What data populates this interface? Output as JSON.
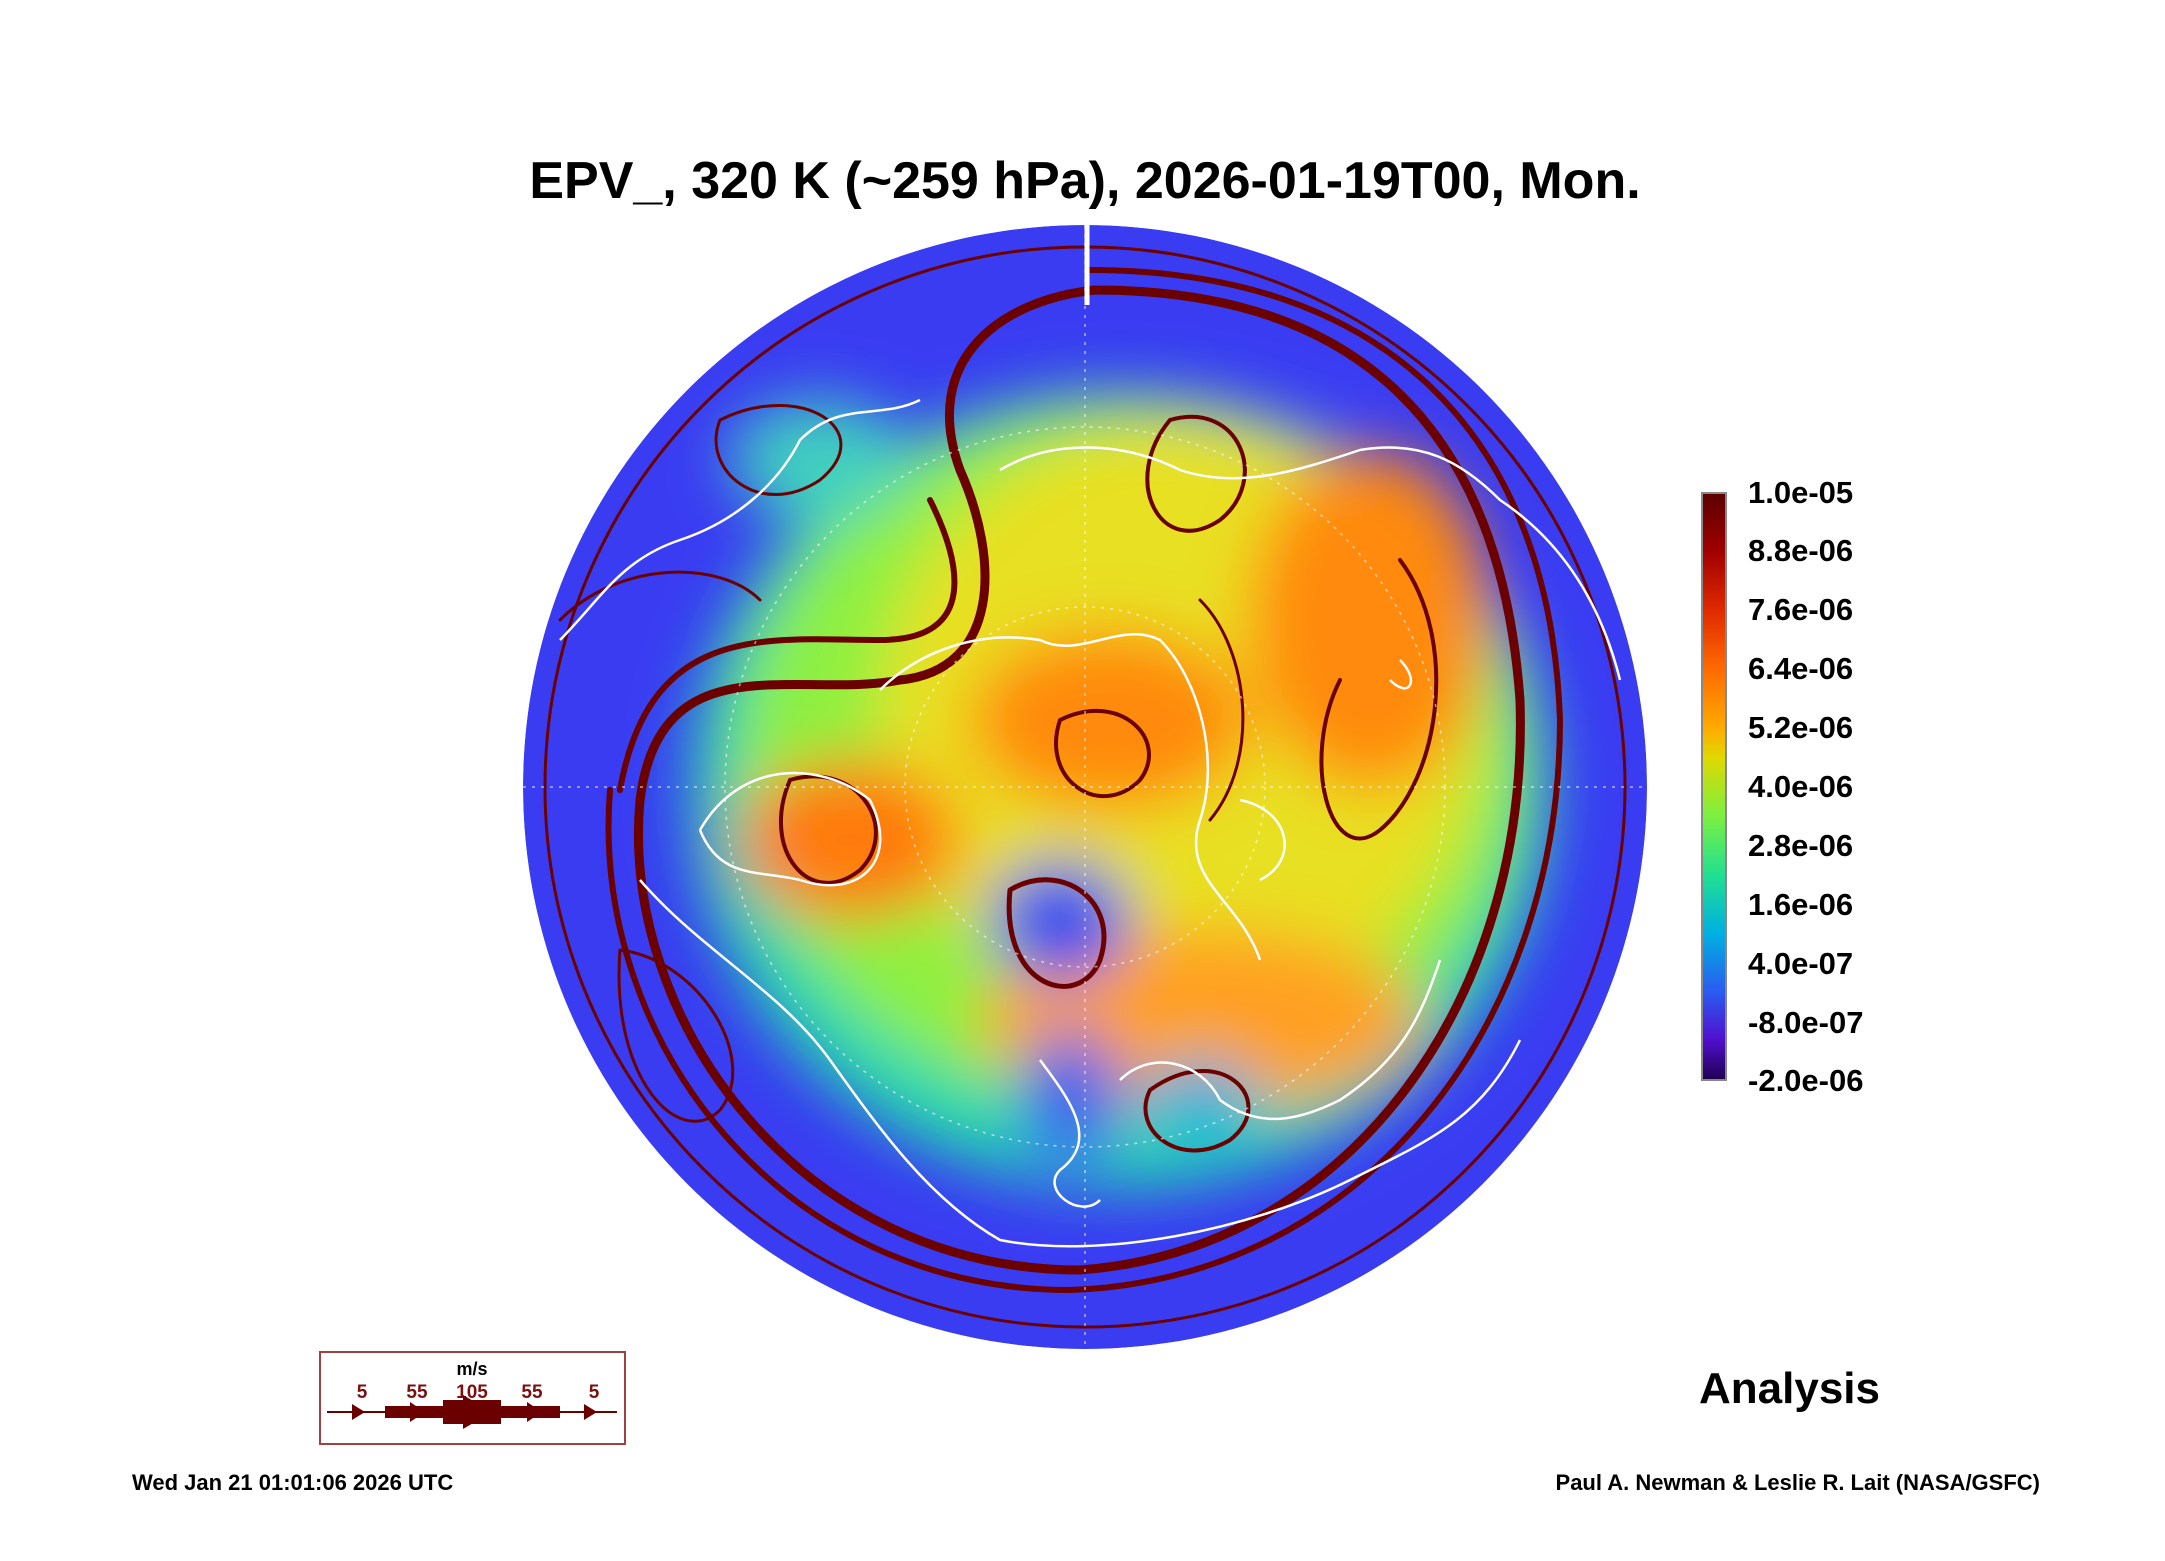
{
  "title": "EPV_, 320 K (~259 hPa), 2026-01-19T00, Mon.",
  "colorbar": {
    "labels": [
      "1.0e-05",
      "8.8e-06",
      "7.6e-06",
      "6.4e-06",
      "5.2e-06",
      "4.0e-06",
      "2.8e-06",
      "1.6e-06",
      "4.0e-07",
      "-8.0e-07",
      "-2.0e-06"
    ],
    "colors": [
      "#5a0000",
      "#a00000",
      "#e02a00",
      "#ff6a00",
      "#ffaa00",
      "#d8e000",
      "#6cf040",
      "#20e090",
      "#00b8d8",
      "#2a5cf0",
      "#5010d0",
      "#200050"
    ]
  },
  "wind_legend": {
    "unit": "m/s",
    "speeds": [
      "5",
      "55",
      "105",
      "55",
      "5"
    ],
    "color": "#6b0000"
  },
  "label_analysis": "Analysis",
  "footer": {
    "timestamp": "Wed Jan 21 01:01:06 2026 UTC",
    "credit": "Paul A. Newman & Leslie R. Lait (NASA/GSFC)"
  }
}
